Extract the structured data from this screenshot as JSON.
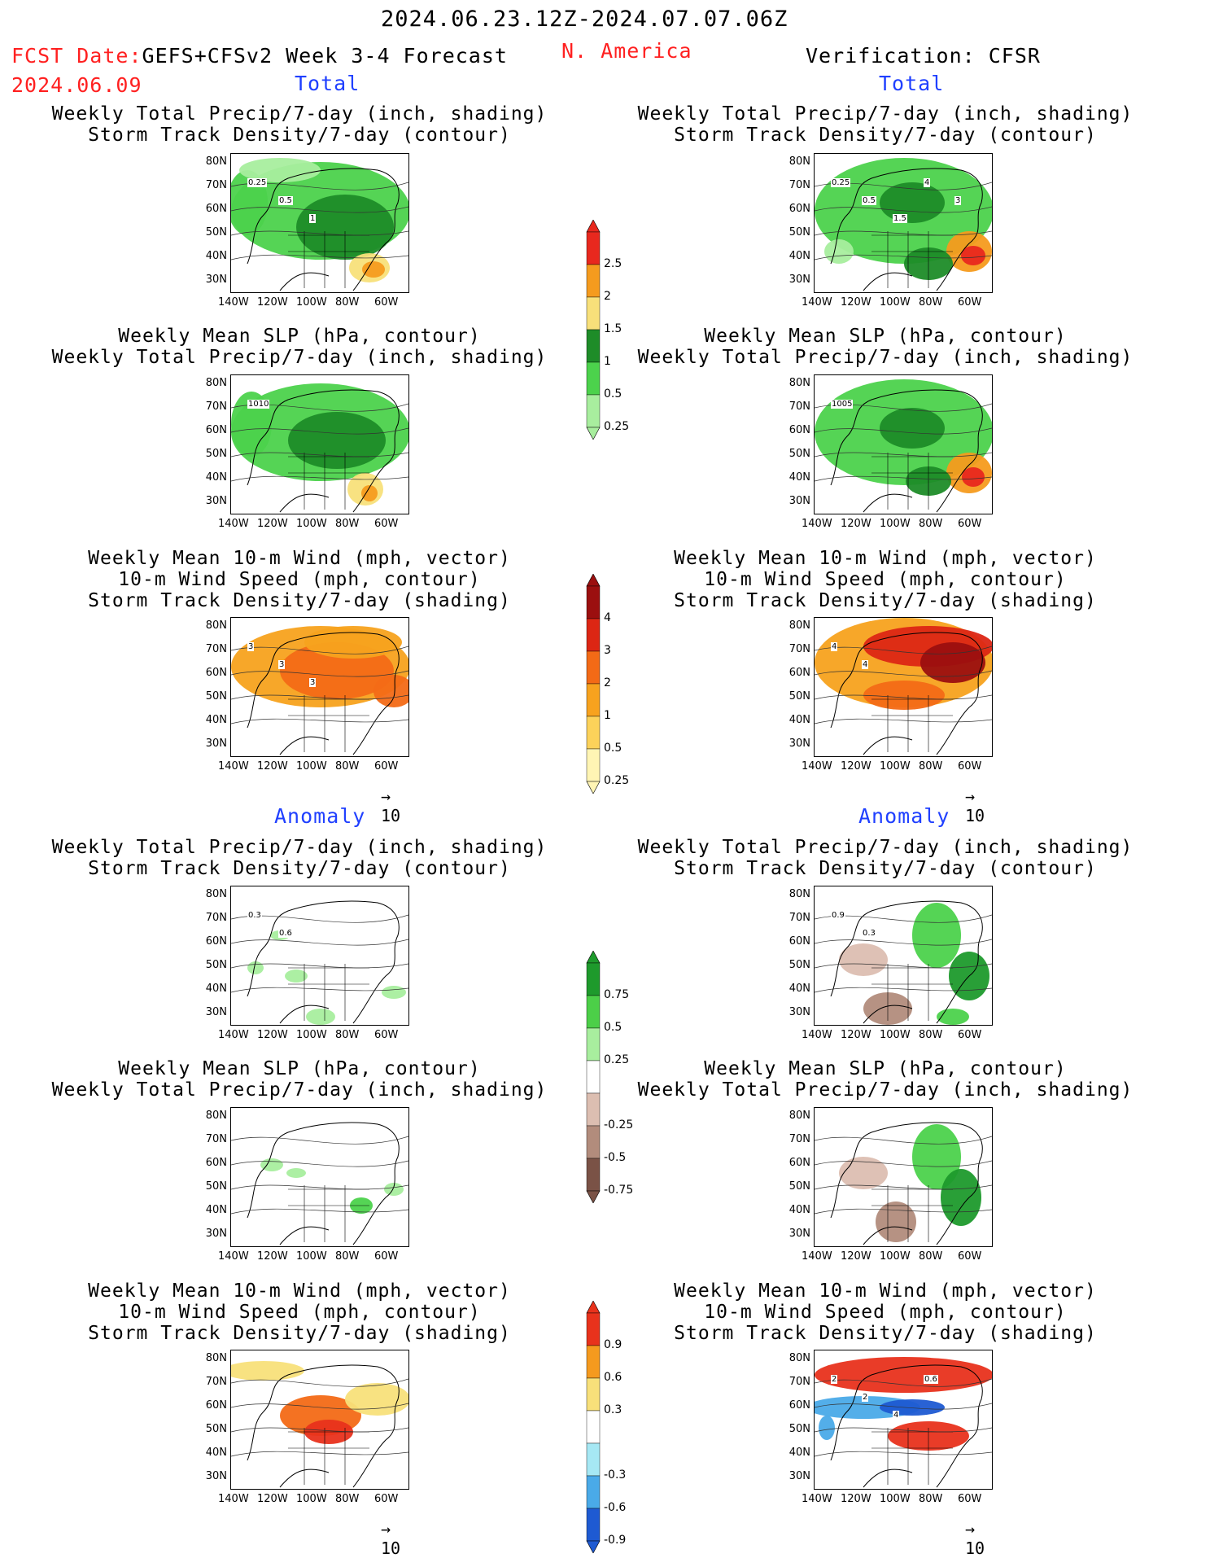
{
  "header": {
    "date_range": "2024.06.23.12Z-2024.07.07.06Z",
    "fcst_date_label": "FCST Date:",
    "fcst_title": "GEFS+CFSv2 Week 3-4 Forecast",
    "fcst_date": "2024.06.09",
    "region": "N. America",
    "verification": "Verification: CFSR"
  },
  "sections": {
    "total": "Total",
    "anomaly": "Anomaly"
  },
  "titles": {
    "precip_track": [
      "Weekly Total Precip/7-day (inch, shading)",
      "Storm Track Density/7-day (contour)"
    ],
    "slp_precip": [
      "Weekly Mean SLP (hPa, contour)",
      "Weekly Total Precip/7-day (inch, shading)"
    ],
    "wind": [
      "Weekly Mean 10-m Wind (mph, vector)",
      "10-m Wind Speed (mph, contour)",
      "Storm Track Density/7-day (shading)"
    ]
  },
  "axes": {
    "lat_labels": [
      "80N",
      "70N",
      "60N",
      "50N",
      "40N",
      "30N"
    ],
    "lon_labels": [
      "140W",
      "120W",
      "100W",
      "80W",
      "60W"
    ]
  },
  "vector_ref": "10",
  "contour_labels": {
    "fcst_precip": [
      "0.25",
      "0.5",
      "1"
    ],
    "fcst_slp": [
      "1010"
    ],
    "fcst_wind": [
      "3",
      "3",
      "3"
    ],
    "verif_precip": [
      "0.25",
      "0.5",
      "1.5",
      "4",
      "3"
    ],
    "verif_slp": [
      "1005"
    ],
    "verif_wind": [
      "4",
      "4"
    ],
    "anom_fcst_precip": [
      "0.3",
      "0.6"
    ],
    "anom_verif_precip": [
      "0.9",
      "0.3"
    ],
    "anom_verif_wind": [
      "2",
      "2",
      "4",
      "0.6"
    ]
  },
  "colorbars": {
    "precip_total": {
      "labels": [
        "2.5",
        "2",
        "1.5",
        "1",
        "0.5",
        "0.25"
      ],
      "colors": [
        "#e8281e",
        "#f59b1e",
        "#f8e07a",
        "#1e8c28",
        "#4cd24c",
        "#a8ee9e"
      ]
    },
    "track_total": {
      "labels": [
        "4",
        "3",
        "2",
        "1",
        "0.5",
        "0.25"
      ],
      "colors": [
        "#9b0f0f",
        "#dc2614",
        "#f36a16",
        "#f7a21e",
        "#fcd25a",
        "#fff5b4"
      ]
    },
    "precip_anom": {
      "labels": [
        "0.75",
        "0.5",
        "0.25",
        "-0.25",
        "-0.5",
        "-0.75"
      ],
      "colors": [
        "#1e9a2c",
        "#4ccf48",
        "#a8ee9e",
        "#ffffff",
        "#dcbeb1",
        "#b28c7c",
        "#7a5246"
      ]
    },
    "track_anom": {
      "labels": [
        "0.9",
        "0.6",
        "0.3",
        "-0.3",
        "-0.6",
        "-0.9"
      ],
      "colors": [
        "#e8321c",
        "#f59a1e",
        "#f8e07a",
        "#ffffff",
        "#a6e8f4",
        "#4aaae8",
        "#1e5ad2"
      ]
    }
  }
}
